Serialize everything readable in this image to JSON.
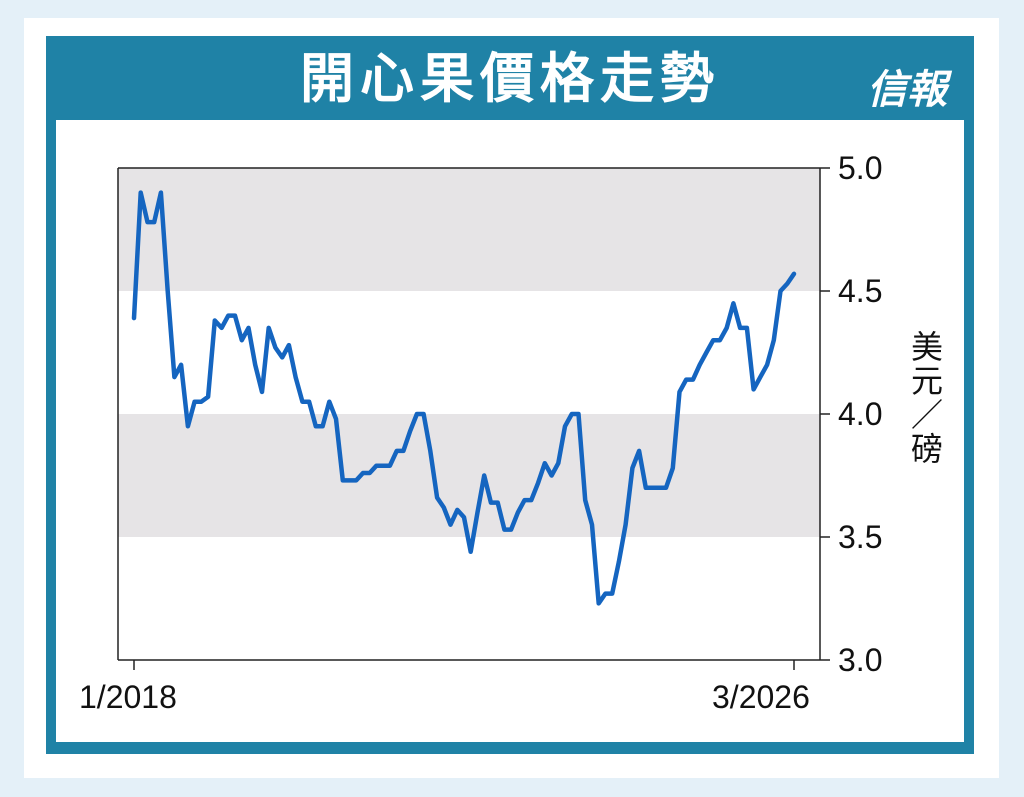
{
  "header": {
    "title": "開心果價格走勢",
    "logo": "信報"
  },
  "colors": {
    "panel": "#1f82a6",
    "line": "#1565c0",
    "band": "#e6e4e6"
  },
  "chart_data": {
    "type": "line",
    "title": "開心果價格走勢",
    "ylabel": "美元／磅",
    "y_axis_position": "right",
    "ylim": [
      3.0,
      5.0
    ],
    "y_ticks": [
      "5.0",
      "4.5",
      "4.0",
      "3.5",
      "3.0"
    ],
    "x_tick_labels": [
      "1/2018",
      "3/2026"
    ],
    "alternating_bands": true,
    "series": [
      {
        "values": [
          4.39,
          4.9,
          4.78,
          4.78,
          4.9,
          4.5,
          4.15,
          4.2,
          3.95,
          4.05,
          4.05,
          4.07,
          4.38,
          4.35,
          4.4,
          4.4,
          4.3,
          4.35,
          4.2,
          4.09,
          4.35,
          4.27,
          4.23,
          4.28,
          4.15,
          4.05,
          4.05,
          3.95,
          3.95,
          4.05,
          3.98,
          3.73,
          3.73,
          3.73,
          3.76,
          3.76,
          3.79,
          3.79,
          3.79,
          3.85,
          3.85,
          3.93,
          4.0,
          4.0,
          3.85,
          3.66,
          3.62,
          3.55,
          3.61,
          3.58,
          3.44,
          3.6,
          3.75,
          3.64,
          3.64,
          3.53,
          3.53,
          3.6,
          3.65,
          3.65,
          3.72,
          3.8,
          3.75,
          3.8,
          3.95,
          4.0,
          4.0,
          3.65,
          3.55,
          3.23,
          3.27,
          3.27,
          3.4,
          3.55,
          3.78,
          3.85,
          3.7,
          3.7,
          3.7,
          3.7,
          3.78,
          4.09,
          4.14,
          4.14,
          4.2,
          4.25,
          4.3,
          4.3,
          4.35,
          4.45,
          4.35,
          4.35,
          4.1,
          4.15,
          4.2,
          4.3,
          4.5,
          4.53,
          4.57
        ]
      }
    ]
  }
}
